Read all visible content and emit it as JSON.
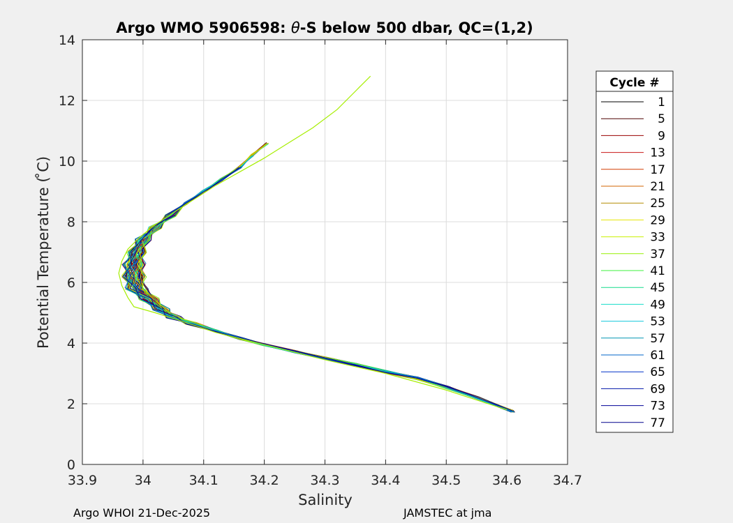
{
  "footer": {
    "left": "Argo WHOI 21-Dec-2025",
    "right": "JAMSTEC at jma"
  },
  "chart_data": {
    "type": "line",
    "title_prefix": "Argo WMO 5906598: ",
    "title_theta": "θ",
    "title_suffix": "-S below 500 dbar,  QC=(1,2)",
    "xlabel": "Salinity",
    "ylabel": "Potential Temperature ( ̊C)",
    "xlim": [
      33.9,
      34.7
    ],
    "ylim": [
      0,
      14
    ],
    "xticks": [
      33.9,
      34.0,
      34.1,
      34.2,
      34.3,
      34.4,
      34.5,
      34.6,
      34.7
    ],
    "xtick_labels": [
      "33.9",
      "34",
      "34.1",
      "34.2",
      "34.3",
      "34.4",
      "34.5",
      "34.6",
      "34.7"
    ],
    "yticks": [
      0,
      2,
      4,
      6,
      8,
      10,
      12,
      14
    ],
    "ytick_labels": [
      "0",
      "2",
      "4",
      "6",
      "8",
      "10",
      "12",
      "14"
    ],
    "grid": true,
    "legend_title": "Cycle #",
    "legend_position": "outside-right",
    "legend_entries": [
      {
        "label": "1",
        "color": "#000000"
      },
      {
        "label": "5",
        "color": "#4d0000"
      },
      {
        "label": "9",
        "color": "#990000"
      },
      {
        "label": "13",
        "color": "#c81414"
      },
      {
        "label": "17",
        "color": "#d23c00"
      },
      {
        "label": "21",
        "color": "#d26400"
      },
      {
        "label": "25",
        "color": "#b48c00"
      },
      {
        "label": "29",
        "color": "#e6e600"
      },
      {
        "label": "33",
        "color": "#c8f000"
      },
      {
        "label": "37",
        "color": "#96f000"
      },
      {
        "label": "41",
        "color": "#3cf03c"
      },
      {
        "label": "45",
        "color": "#14dc8c"
      },
      {
        "label": "49",
        "color": "#14dcc8"
      },
      {
        "label": "53",
        "color": "#14c8dc"
      },
      {
        "label": "57",
        "color": "#0096b4"
      },
      {
        "label": "61",
        "color": "#0064c8"
      },
      {
        "label": "65",
        "color": "#0032c8"
      },
      {
        "label": "69",
        "color": "#0014aa"
      },
      {
        "label": "73",
        "color": "#000096"
      },
      {
        "label": "77",
        "color": "#00008c"
      }
    ],
    "profile_shape": [
      [
        34.61,
        1.75
      ],
      [
        34.55,
        2.2
      ],
      [
        34.5,
        2.55
      ],
      [
        34.45,
        2.85
      ],
      [
        34.4,
        3.05
      ],
      [
        34.35,
        3.3
      ],
      [
        34.3,
        3.5
      ],
      [
        34.25,
        3.72
      ],
      [
        34.2,
        3.95
      ],
      [
        34.16,
        4.15
      ],
      [
        34.12,
        4.4
      ],
      [
        34.08,
        4.65
      ],
      [
        34.05,
        4.85
      ],
      [
        34.03,
        5.1
      ],
      [
        34.01,
        5.45
      ],
      [
        33.99,
        5.8
      ],
      [
        33.985,
        6.2
      ],
      [
        33.985,
        6.6
      ],
      [
        33.99,
        7.0
      ],
      [
        34.0,
        7.4
      ],
      [
        34.02,
        7.8
      ],
      [
        34.045,
        8.2
      ],
      [
        34.07,
        8.6
      ],
      [
        34.1,
        9.0
      ],
      [
        34.13,
        9.4
      ],
      [
        34.16,
        9.8
      ],
      [
        34.18,
        10.2
      ],
      [
        34.205,
        10.6
      ]
    ],
    "highlight_profile": [
      [
        34.6,
        1.8
      ],
      [
        34.5,
        2.45
      ],
      [
        34.4,
        3.0
      ],
      [
        34.3,
        3.45
      ],
      [
        34.2,
        3.95
      ],
      [
        34.12,
        4.35
      ],
      [
        34.06,
        4.75
      ],
      [
        34.02,
        5.0
      ],
      [
        33.985,
        5.2
      ],
      [
        33.975,
        5.5
      ],
      [
        33.965,
        5.9
      ],
      [
        33.96,
        6.3
      ],
      [
        33.965,
        6.7
      ],
      [
        33.975,
        7.1
      ],
      [
        33.995,
        7.5
      ],
      [
        34.02,
        7.9
      ],
      [
        34.05,
        8.3
      ],
      [
        34.085,
        8.75
      ],
      [
        34.12,
        9.2
      ],
      [
        34.16,
        9.65
      ],
      [
        34.2,
        10.1
      ],
      [
        34.24,
        10.6
      ],
      [
        34.28,
        11.1
      ],
      [
        34.32,
        11.7
      ],
      [
        34.355,
        12.4
      ],
      [
        34.375,
        12.8
      ]
    ]
  }
}
